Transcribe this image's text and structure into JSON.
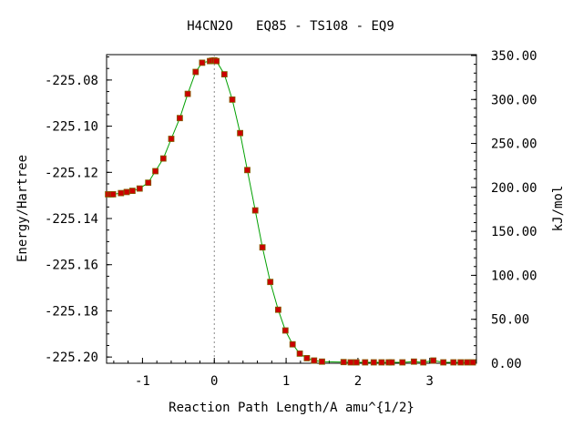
{
  "chart_data": {
    "type": "line",
    "title": "H4CN2O   EQ85 - TS108 - EQ9",
    "xlabel": "Reaction Path Length/A amu^{1/2}",
    "ylabel": "Energy/Hartree",
    "y2label": "kJ/mol",
    "xlim": [
      -1.5,
      3.65
    ],
    "ylim": [
      -225.2027,
      -225.069
    ],
    "y2lim": [
      0,
      351
    ],
    "x_ticks": [
      -1,
      0,
      1,
      2,
      3
    ],
    "y_ticks": [
      -225.08,
      -225.1,
      -225.12,
      -225.14,
      -225.16,
      -225.18,
      -225.2
    ],
    "y_tick_labels": [
      "-225.08",
      "-225.10",
      "-225.12",
      "-225.14",
      "-225.16",
      "-225.18",
      "-225.20"
    ],
    "y2_ticks": [
      0,
      50,
      100,
      150,
      200,
      250,
      300,
      350
    ],
    "y2_tick_labels": [
      "0.00",
      "50.00",
      "100.00",
      "150.00",
      "200.00",
      "250.00",
      "300.00",
      "350.00"
    ],
    "ts_marker_x": 0.0,
    "colors": {
      "line": "#00a000",
      "marker": "#cc0000",
      "marker_edge": "#806000",
      "ts_line": "#888888"
    },
    "series": [
      {
        "x": [
          -1.48,
          -1.44,
          -1.41,
          -1.3,
          -1.22,
          -1.14,
          -1.04,
          -0.92,
          -0.82,
          -0.71,
          -0.6,
          -0.48,
          -0.37,
          -0.26,
          -0.17,
          -0.06,
          -0.03,
          0.0,
          0.03,
          0.14,
          0.25,
          0.36,
          0.46,
          0.57,
          0.67,
          0.78,
          0.89,
          0.99,
          1.09,
          1.19,
          1.29,
          1.39,
          1.5,
          1.8,
          1.9,
          1.98,
          2.1,
          2.22,
          2.33,
          2.43,
          2.47,
          2.62,
          2.78,
          2.91,
          3.05,
          3.19,
          3.33,
          3.43,
          3.52,
          3.6
        ],
        "y": [
          -225.1295,
          -225.1295,
          -225.1295,
          -225.129,
          -225.1285,
          -225.128,
          -225.127,
          -225.1245,
          -225.1195,
          -225.114,
          -225.1055,
          -225.0965,
          -225.086,
          -225.0765,
          -225.0725,
          -225.0718,
          -225.0716,
          -225.0715,
          -225.0718,
          -225.0775,
          -225.0885,
          -225.103,
          -225.119,
          -225.1365,
          -225.1525,
          -225.1675,
          -225.1795,
          -225.1885,
          -225.1945,
          -225.1985,
          -225.2005,
          -225.2015,
          -225.202,
          -225.2022,
          -225.2023,
          -225.2023,
          -225.2023,
          -225.2023,
          -225.2023,
          -225.2023,
          -225.2023,
          -225.2023,
          -225.202,
          -225.2023,
          -225.2015,
          -225.2023,
          -225.2023,
          -225.2023,
          -225.2023,
          -225.2023
        ]
      }
    ]
  }
}
